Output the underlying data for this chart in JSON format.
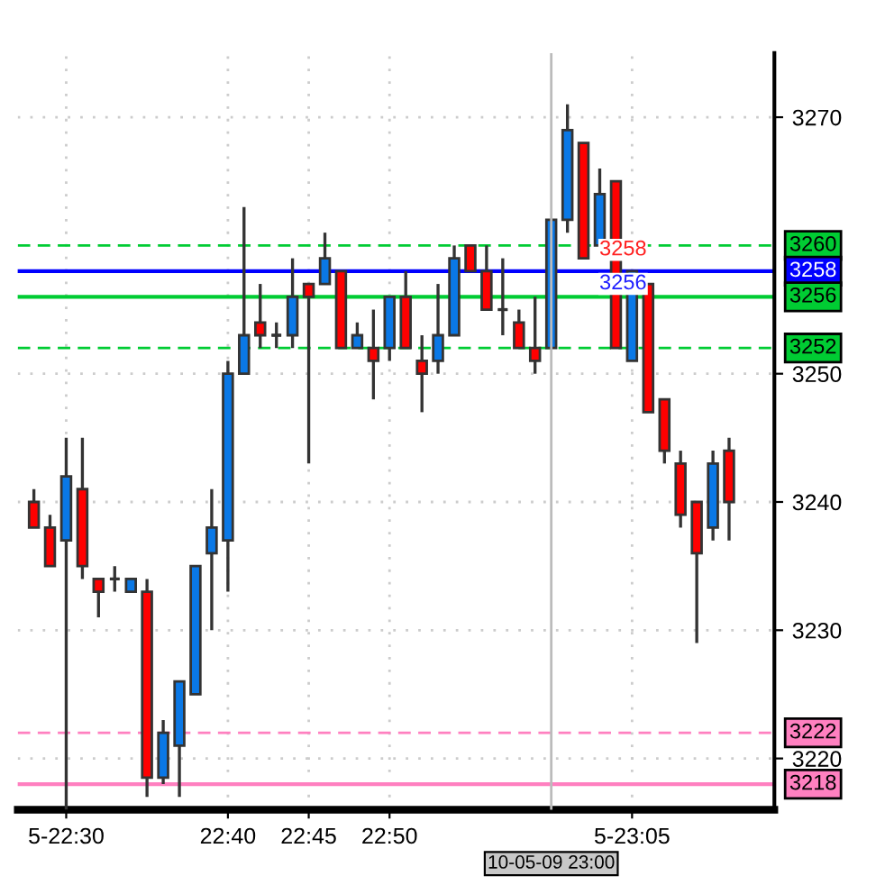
{
  "chart_data": {
    "type": "candlestick",
    "x": [
      22.4667,
      22.4833,
      22.5,
      22.5167,
      22.5333,
      22.55,
      22.5667,
      22.5833,
      22.6,
      22.6167,
      22.6333,
      22.65,
      22.6667,
      22.6833,
      22.7,
      22.7167,
      22.7333,
      22.75,
      22.7667,
      22.7833,
      22.8,
      22.8167,
      22.8333,
      22.85,
      22.8667,
      22.8833,
      22.9,
      22.9167,
      22.9333,
      22.95,
      22.9667,
      22.9833,
      23.0,
      23.0167,
      23.0333,
      23.05,
      23.0667,
      23.0833,
      23.1,
      23.1167,
      23.1333,
      23.15,
      23.1667,
      23.1833
    ],
    "ohlc": [
      [
        3240,
        3241,
        3238,
        3238
      ],
      [
        3238,
        3239,
        3235,
        3235
      ],
      [
        3237,
        3245,
        3216,
        3242
      ],
      [
        3241,
        3245,
        3234,
        3235
      ],
      [
        3234,
        3234,
        3231,
        3233
      ],
      [
        3234,
        3235,
        3233,
        3234
      ],
      [
        3233,
        3234,
        3233,
        3234
      ],
      [
        3233,
        3234,
        3217,
        3218.5
      ],
      [
        3218.5,
        3223,
        3218,
        3222
      ],
      [
        3221,
        3226,
        3217,
        3226
      ],
      [
        3225,
        3235,
        3225,
        3235
      ],
      [
        3236,
        3241,
        3230,
        3238
      ],
      [
        3237,
        3251,
        3233,
        3250
      ],
      [
        3250,
        3263,
        3250,
        3253
      ],
      [
        3254,
        3257,
        3252,
        3253
      ],
      [
        3253,
        3254,
        3252,
        3253
      ],
      [
        3253,
        3259,
        3252,
        3256
      ],
      [
        3257,
        3257,
        3243,
        3256
      ],
      [
        3257,
        3261,
        3257,
        3259
      ],
      [
        3258,
        3258,
        3252,
        3252
      ],
      [
        3252,
        3254,
        3252,
        3253
      ],
      [
        3252,
        3255,
        3248,
        3251
      ],
      [
        3252,
        3256,
        3251,
        3256
      ],
      [
        3256,
        3258,
        3252,
        3252
      ],
      [
        3251,
        3253,
        3247,
        3250
      ],
      [
        3251,
        3257,
        3250,
        3253
      ],
      [
        3253,
        3260,
        3253,
        3259
      ],
      [
        3260,
        3260,
        3258,
        3258
      ],
      [
        3258,
        3260,
        3255,
        3255
      ],
      [
        3255,
        3259,
        3253,
        3255
      ],
      [
        3254,
        3255,
        3252,
        3252
      ],
      [
        3252,
        3256,
        3250,
        3251
      ],
      [
        3252,
        3262,
        3252,
        3262
      ],
      [
        3262,
        3271,
        3261,
        3269
      ],
      [
        3268,
        3268,
        3259,
        3259
      ],
      [
        3260,
        3266,
        3260,
        3264
      ],
      [
        3265,
        3265,
        3252,
        3252
      ],
      [
        3251,
        3258,
        3251,
        3258
      ],
      [
        3257,
        3257,
        3247,
        3247
      ],
      [
        3248,
        3248,
        3243,
        3244
      ],
      [
        3243,
        3244,
        3238,
        3239
      ],
      [
        3240,
        3240,
        3229,
        3236
      ],
      [
        3238,
        3244,
        3237,
        3243
      ],
      [
        3244,
        3245,
        3237,
        3240
      ]
    ],
    "colors": [
      "#ff0000",
      "#ff0000",
      "#0a78e6",
      "#ff0000",
      "#ff0000",
      "#333333",
      "#0a78e6",
      "#ff0000",
      "#0a78e6",
      "#0a78e6",
      "#0a78e6",
      "#0a78e6",
      "#0a78e6",
      "#0a78e6",
      "#ff0000",
      "#333333",
      "#0a78e6",
      "#ff0000",
      "#0a78e6",
      "#ff0000",
      "#0a78e6",
      "#ff0000",
      "#0a78e6",
      "#ff0000",
      "#ff0000",
      "#0a78e6",
      "#0a78e6",
      "#ff0000",
      "#ff0000",
      "#333333",
      "#ff0000",
      "#ff0000",
      "#0a78e6",
      "#0a78e6",
      "#ff0000",
      "#0a78e6",
      "#ff0000",
      "#0a78e6",
      "#ff0000",
      "#ff0000",
      "#ff0000",
      "#ff0000",
      "#0a78e6",
      "#ff0000"
    ],
    "xlim": [
      22.45,
      23.23
    ],
    "xticks": [
      {
        "value": 22.5,
        "label": "5-22:30"
      },
      {
        "value": 22.6667,
        "label": "22:40"
      },
      {
        "value": 22.75,
        "label": "22:45"
      },
      {
        "value": 22.8333,
        "label": "22:50"
      },
      {
        "value": 23.0833,
        "label": "5-23:05"
      }
    ],
    "ylim": [
      3216,
      3275
    ],
    "yticks": [
      3220,
      3230,
      3240,
      3250,
      3270
    ],
    "grid": true,
    "ref_lines": [
      {
        "axis": "y",
        "value": 3260,
        "label": "3260",
        "color": "#00cc33",
        "line_style": "dashed"
      },
      {
        "axis": "y",
        "value": 3258,
        "label": "3258",
        "color": "#0000ff",
        "line_style": "solid"
      },
      {
        "axis": "y",
        "value": 3256,
        "label": "3256",
        "color": "#00cc33",
        "line_style": "solid"
      },
      {
        "axis": "y",
        "value": 3252,
        "label": "3252",
        "color": "#00cc33",
        "line_style": "dashed"
      },
      {
        "axis": "y",
        "value": 3222,
        "label": "3222",
        "color": "#ff80c0",
        "line_style": "dashed"
      },
      {
        "axis": "y",
        "value": 3218,
        "label": "3218",
        "color": "#ff80c0",
        "line_style": "solid"
      },
      {
        "axis": "x",
        "value": 23.0,
        "label": "10-05-09 23:00",
        "color": "#bbbbbb",
        "line_style": "solid"
      }
    ],
    "annotations": [
      "3258",
      "3256"
    ]
  }
}
